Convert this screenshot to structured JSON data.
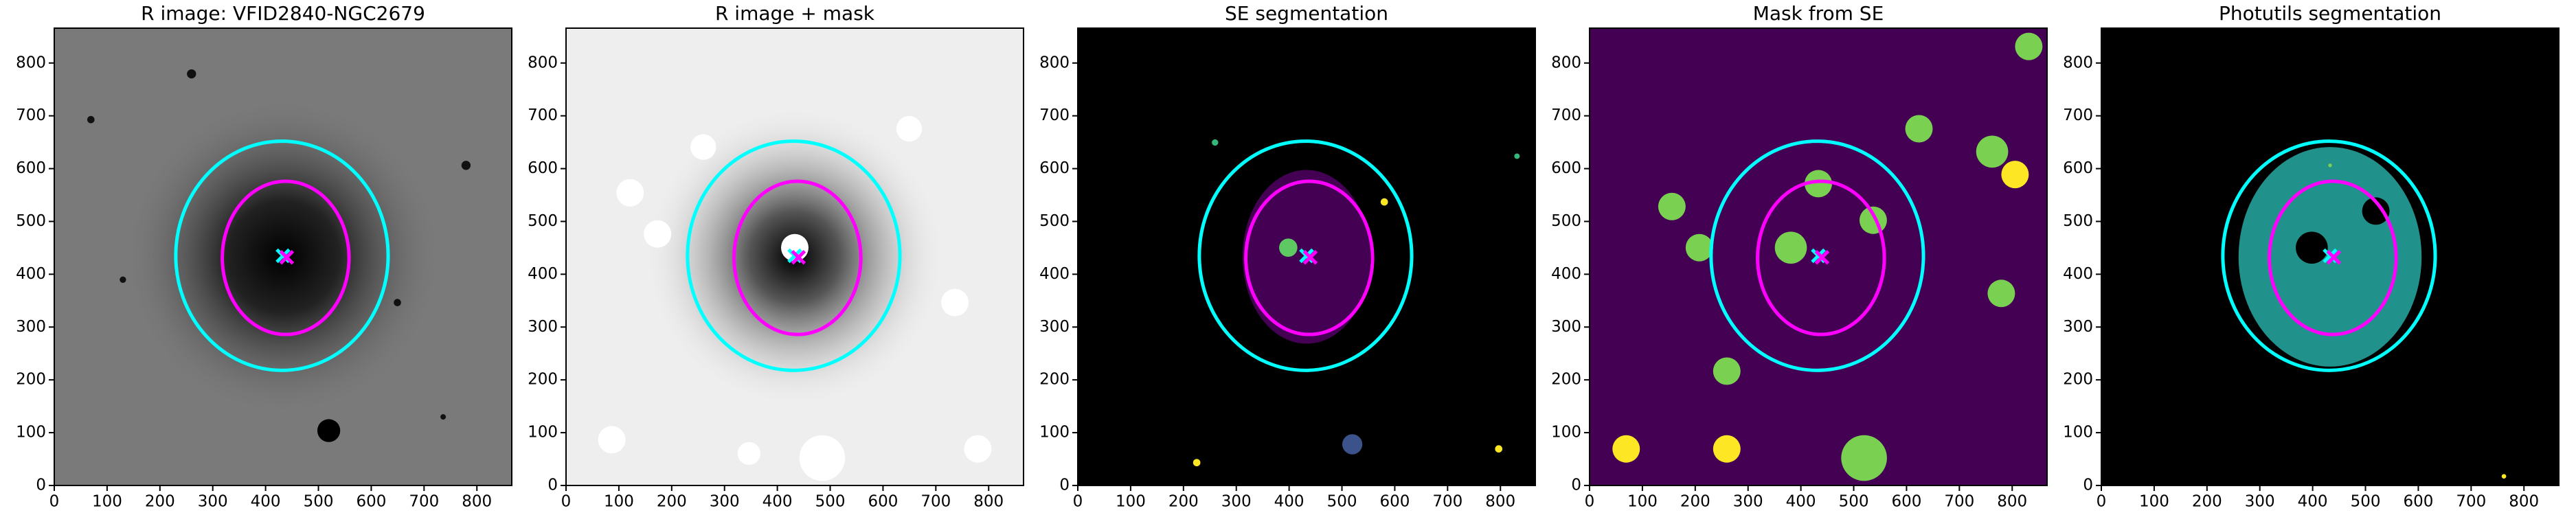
{
  "chart_data": [
    {
      "type": "image",
      "title": "R image: VFID2840-NGC2679",
      "xlim": [
        0,
        866
      ],
      "ylim": [
        0,
        866
      ],
      "xticks": [
        0,
        100,
        200,
        300,
        400,
        500,
        600,
        700,
        800
      ],
      "yticks": [
        0,
        100,
        200,
        300,
        400,
        500,
        600,
        700,
        800
      ],
      "ellipses": [
        {
          "cx": 431,
          "cy": 435,
          "rx": 201,
          "ry": 217,
          "color": "#00ffff"
        },
        {
          "cx": 438,
          "cy": 431,
          "rx": 120,
          "ry": 145,
          "color": "#ff00ff"
        }
      ],
      "markers": [
        {
          "x": 433,
          "y": 435,
          "color": "#00ffff"
        },
        {
          "x": 440,
          "y": 432,
          "color": "#ff00ff"
        }
      ]
    },
    {
      "type": "image",
      "title": "R image + mask",
      "xlim": [
        0,
        866
      ],
      "ylim": [
        0,
        866
      ],
      "xticks": [
        0,
        100,
        200,
        300,
        400,
        500,
        600,
        700,
        800
      ],
      "yticks": [
        0,
        100,
        200,
        300,
        400,
        500,
        600,
        700,
        800
      ],
      "ellipses": [
        {
          "cx": 431,
          "cy": 435,
          "rx": 201,
          "ry": 217,
          "color": "#00ffff"
        },
        {
          "cx": 438,
          "cy": 431,
          "rx": 120,
          "ry": 145,
          "color": "#ff00ff"
        }
      ],
      "markers": [
        {
          "x": 433,
          "y": 435,
          "color": "#00ffff"
        },
        {
          "x": 440,
          "y": 432,
          "color": "#ff00ff"
        }
      ]
    },
    {
      "type": "image",
      "title": "SE segmentation",
      "xlim": [
        0,
        866
      ],
      "ylim": [
        0,
        866
      ],
      "xticks": [
        0,
        100,
        200,
        300,
        400,
        500,
        600,
        700,
        800
      ],
      "yticks": [
        0,
        100,
        200,
        300,
        400,
        500,
        600,
        700,
        800
      ],
      "ellipses": [
        {
          "cx": 431,
          "cy": 435,
          "rx": 201,
          "ry": 217,
          "color": "#00ffff"
        },
        {
          "cx": 438,
          "cy": 431,
          "rx": 120,
          "ry": 145,
          "color": "#ff00ff"
        }
      ],
      "markers": [
        {
          "x": 433,
          "y": 435,
          "color": "#00ffff"
        },
        {
          "x": 440,
          "y": 432,
          "color": "#ff00ff"
        }
      ]
    },
    {
      "type": "image",
      "title": "Mask from SE",
      "xlim": [
        0,
        866
      ],
      "ylim": [
        0,
        866
      ],
      "xticks": [
        0,
        100,
        200,
        300,
        400,
        500,
        600,
        700,
        800
      ],
      "yticks": [
        0,
        100,
        200,
        300,
        400,
        500,
        600,
        700,
        800
      ],
      "ellipses": [
        {
          "cx": 431,
          "cy": 435,
          "rx": 201,
          "ry": 217,
          "color": "#00ffff"
        },
        {
          "cx": 438,
          "cy": 431,
          "rx": 120,
          "ry": 145,
          "color": "#ff00ff"
        }
      ],
      "markers": [
        {
          "x": 433,
          "y": 435,
          "color": "#00ffff"
        },
        {
          "x": 440,
          "y": 432,
          "color": "#ff00ff"
        }
      ]
    },
    {
      "type": "image",
      "title": "Photutils segmentation",
      "xlim": [
        0,
        866
      ],
      "ylim": [
        0,
        866
      ],
      "xticks": [
        0,
        100,
        200,
        300,
        400,
        500,
        600,
        700,
        800
      ],
      "yticks": [
        0,
        100,
        200,
        300,
        400,
        500,
        600,
        700,
        800
      ],
      "ellipses": [
        {
          "cx": 431,
          "cy": 435,
          "rx": 201,
          "ry": 217,
          "color": "#00ffff"
        },
        {
          "cx": 438,
          "cy": 431,
          "rx": 120,
          "ry": 145,
          "color": "#ff00ff"
        }
      ],
      "markers": [
        {
          "x": 433,
          "y": 435,
          "color": "#00ffff"
        },
        {
          "x": 440,
          "y": 432,
          "color": "#ff00ff"
        }
      ]
    }
  ]
}
